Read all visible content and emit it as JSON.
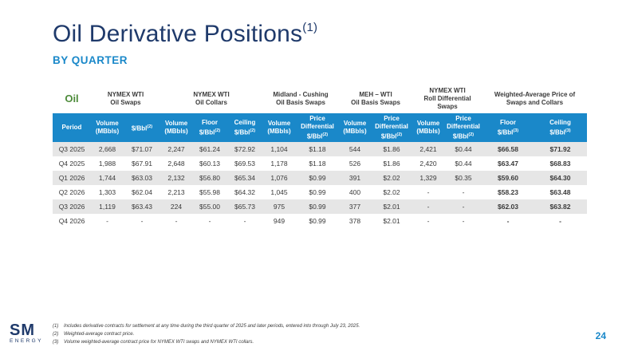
{
  "title": {
    "main": "Oil Derivative Positions",
    "sup": "(1)"
  },
  "subtitle": "BY QUARTER",
  "table": {
    "oil_label": "Oil",
    "groups": {
      "swaps": [
        "NYMEX WTI",
        "Oil Swaps"
      ],
      "collars": [
        "NYMEX WTI",
        "Oil Collars"
      ],
      "midland": [
        "Midland - Cushing",
        "Oil Basis Swaps"
      ],
      "meh": [
        "MEH – WTI",
        "Oil Basis Swaps"
      ],
      "roll": [
        "NYMEX WTI",
        "Roll Differential",
        "Swaps"
      ],
      "wavg": [
        "Weighted-Average Price of",
        "Swaps and Collars"
      ]
    },
    "headers": {
      "period": "Period",
      "volume": [
        "Volume",
        "(MBbls)"
      ],
      "bbl": "$/Bbl",
      "floor": [
        "Floor",
        "$/Bbl"
      ],
      "ceiling": [
        "Ceiling",
        "$/Bbl"
      ],
      "price_diff": [
        "Price",
        "Differential",
        "$/Bbl"
      ],
      "fn2": "(2)",
      "fn3": "(3)"
    },
    "rows": [
      {
        "period": "Q3 2025",
        "v1": "2,668",
        "p1": "$71.07",
        "v2": "2,247",
        "f2": "$61.24",
        "c2": "$72.92",
        "v3": "1,104",
        "d3": "$1.18",
        "v4": "544",
        "d4": "$1.86",
        "v5": "2,421",
        "d5": "$0.44",
        "f6": "$66.58",
        "c6": "$71.92"
      },
      {
        "period": "Q4 2025",
        "v1": "1,988",
        "p1": "$67.91",
        "v2": "2,648",
        "f2": "$60.13",
        "c2": "$69.53",
        "v3": "1,178",
        "d3": "$1.18",
        "v4": "526",
        "d4": "$1.86",
        "v5": "2,420",
        "d5": "$0.44",
        "f6": "$63.47",
        "c6": "$68.83"
      },
      {
        "period": "Q1 2026",
        "v1": "1,744",
        "p1": "$63.03",
        "v2": "2,132",
        "f2": "$56.80",
        "c2": "$65.34",
        "v3": "1,076",
        "d3": "$0.99",
        "v4": "391",
        "d4": "$2.02",
        "v5": "1,329",
        "d5": "$0.35",
        "f6": "$59.60",
        "c6": "$64.30"
      },
      {
        "period": "Q2 2026",
        "v1": "1,303",
        "p1": "$62.04",
        "v2": "2,213",
        "f2": "$55.98",
        "c2": "$64.32",
        "v3": "1,045",
        "d3": "$0.99",
        "v4": "400",
        "d4": "$2.02",
        "v5": "-",
        "d5": "-",
        "f6": "$58.23",
        "c6": "$63.48"
      },
      {
        "period": "Q3 2026",
        "v1": "1,119",
        "p1": "$63.43",
        "v2": "224",
        "f2": "$55.00",
        "c2": "$65.73",
        "v3": "975",
        "d3": "$0.99",
        "v4": "377",
        "d4": "$2.01",
        "v5": "-",
        "d5": "-",
        "f6": "$62.03",
        "c6": "$63.82"
      },
      {
        "period": "Q4 2026",
        "v1": "-",
        "p1": "-",
        "v2": "-",
        "f2": "-",
        "c2": "-",
        "v3": "949",
        "d3": "$0.99",
        "v4": "378",
        "d4": "$2.01",
        "v5": "-",
        "d5": "-",
        "f6": "-",
        "c6": "-"
      }
    ]
  },
  "logo": {
    "sm": "SM",
    "energy": "ENERGY"
  },
  "footnotes": [
    {
      "num": "(1)",
      "text": "Includes derivative contracts for settlement at any time during the third quarter of 2025 and later periods, entered into through July 23, 2025."
    },
    {
      "num": "(2)",
      "text": "Weighted-average contract price."
    },
    {
      "num": "(3)",
      "text": "Volume weighted-average contract price for NYMEX WTI swaps and NYMEX WTI collars."
    }
  ],
  "page_number": "24"
}
